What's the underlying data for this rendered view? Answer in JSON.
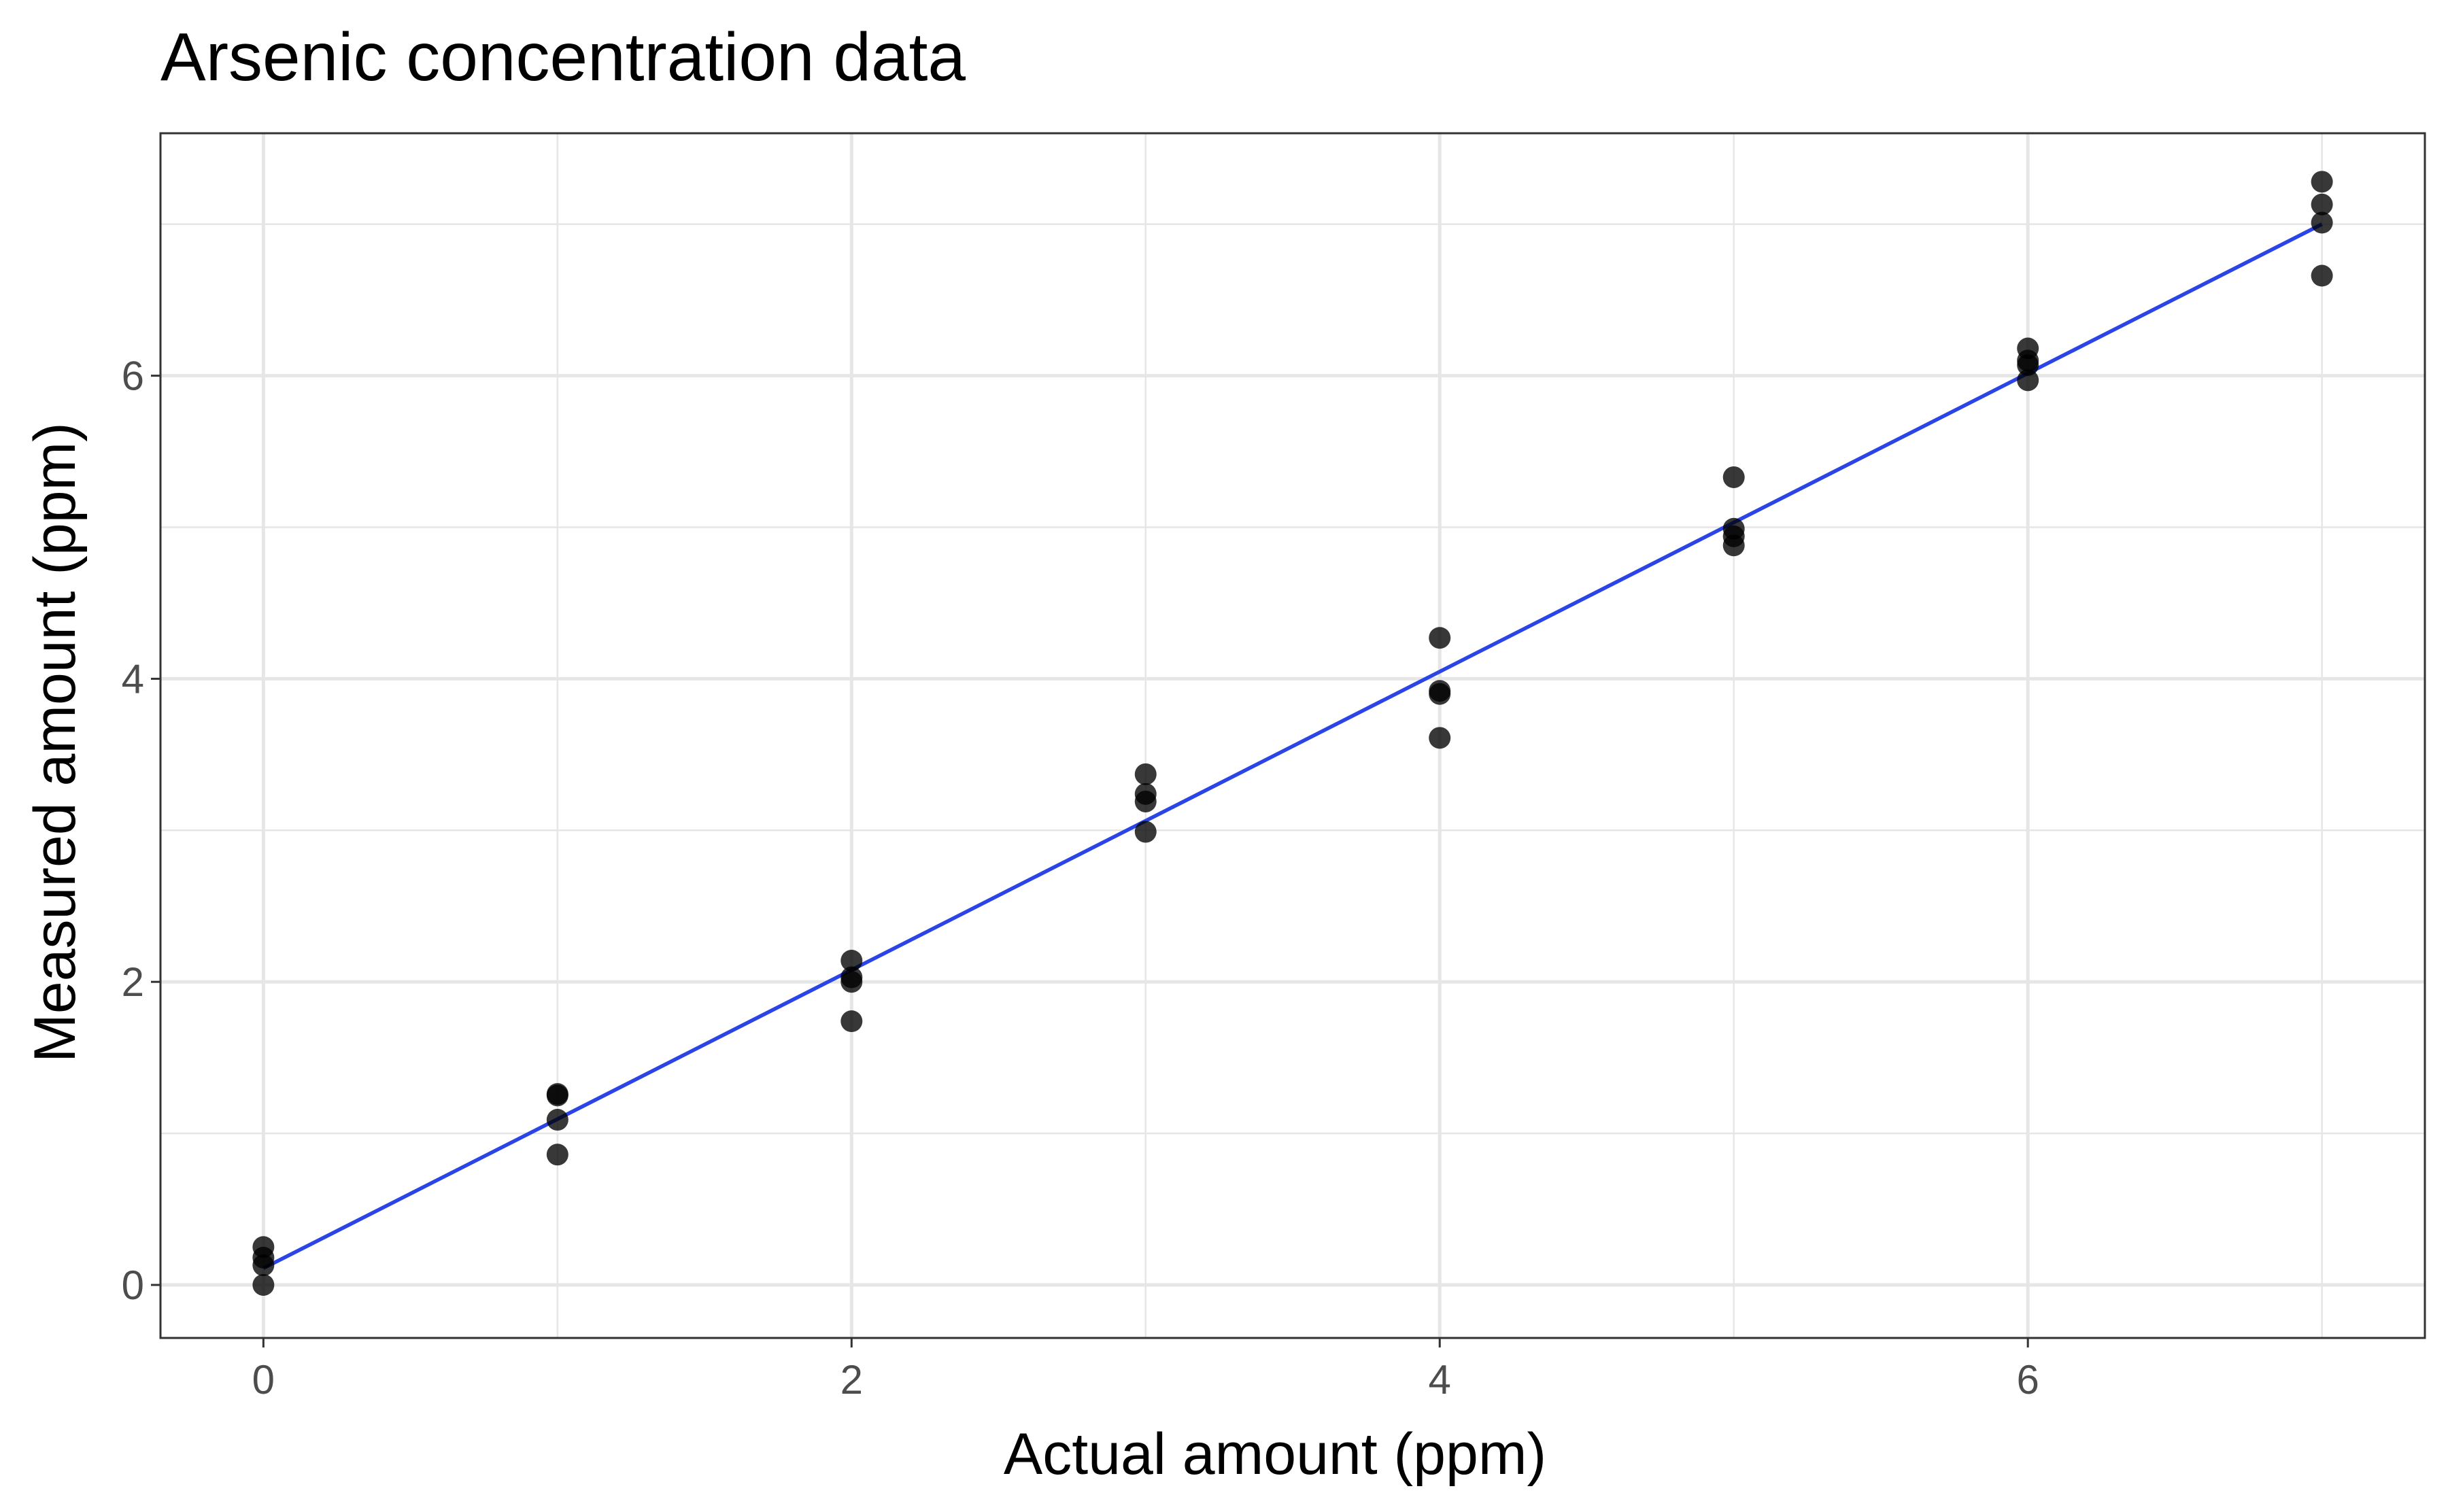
{
  "chart_data": {
    "type": "scatter",
    "title": "Arsenic concentration data",
    "xlabel": "Actual amount (ppm)",
    "ylabel": "Measured amount (ppm)",
    "xlim": [
      -0.35,
      7.35
    ],
    "ylim": [
      -0.35,
      7.6
    ],
    "x_ticks": [
      0,
      2,
      4,
      6
    ],
    "y_ticks": [
      0,
      2,
      4,
      6
    ],
    "x_tick_labels": [
      "0",
      "2",
      "4",
      "6"
    ],
    "y_tick_labels": [
      "0",
      "2",
      "4",
      "6"
    ],
    "grid": true,
    "legend": "none",
    "points": [
      {
        "x": 0,
        "y": 0.0
      },
      {
        "x": 0,
        "y": 0.13
      },
      {
        "x": 0,
        "y": 0.18
      },
      {
        "x": 0,
        "y": 0.25
      },
      {
        "x": 1,
        "y": 0.86
      },
      {
        "x": 1,
        "y": 1.09
      },
      {
        "x": 1,
        "y": 1.25
      },
      {
        "x": 1,
        "y": 1.26
      },
      {
        "x": 2,
        "y": 1.74
      },
      {
        "x": 2,
        "y": 2.0
      },
      {
        "x": 2,
        "y": 2.03
      },
      {
        "x": 2,
        "y": 2.14
      },
      {
        "x": 3,
        "y": 2.99
      },
      {
        "x": 3,
        "y": 3.19
      },
      {
        "x": 3,
        "y": 3.24
      },
      {
        "x": 3,
        "y": 3.37
      },
      {
        "x": 4,
        "y": 3.61
      },
      {
        "x": 4,
        "y": 3.9
      },
      {
        "x": 4,
        "y": 3.92
      },
      {
        "x": 4,
        "y": 4.27
      },
      {
        "x": 5,
        "y": 4.88
      },
      {
        "x": 5,
        "y": 4.94
      },
      {
        "x": 5,
        "y": 4.99
      },
      {
        "x": 5,
        "y": 5.33
      },
      {
        "x": 6,
        "y": 5.97
      },
      {
        "x": 6,
        "y": 6.07
      },
      {
        "x": 6,
        "y": 6.1
      },
      {
        "x": 6,
        "y": 6.18
      },
      {
        "x": 7,
        "y": 6.66
      },
      {
        "x": 7,
        "y": 7.01
      },
      {
        "x": 7,
        "y": 7.13
      },
      {
        "x": 7,
        "y": 7.28
      }
    ],
    "fit_line": {
      "x": [
        0,
        7
      ],
      "y": [
        0.11,
        7.0
      ]
    },
    "colors": {
      "points": "#000000",
      "fit_line": "#2b44e8",
      "grid": "#e6e6e6",
      "panel_border": "#333333",
      "tick_label": "#4d4d4d"
    }
  }
}
